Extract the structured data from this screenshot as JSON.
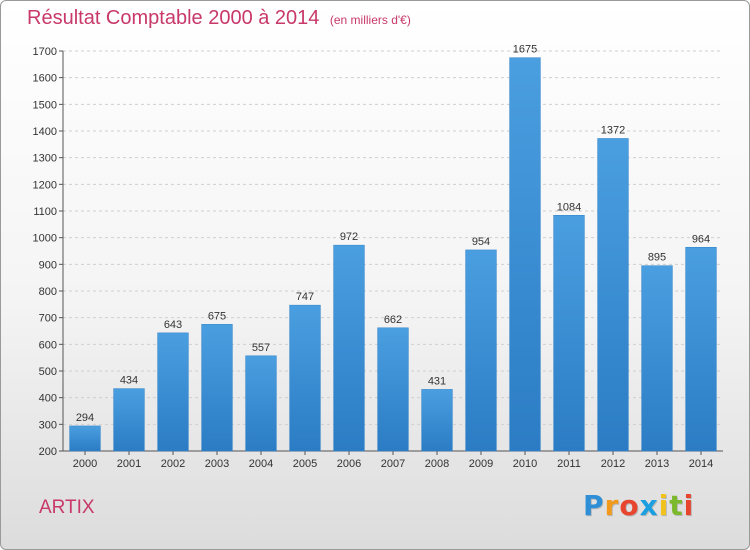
{
  "header": {
    "title": "Résultat Comptable 2000 à 2014",
    "subtitle": "(en milliers d'€)"
  },
  "footer": {
    "location": "ARTIX",
    "brand_letters": [
      "P",
      "r",
      "o",
      "x",
      "i",
      "t",
      "i"
    ],
    "brand_colors": [
      "#2e8fd6",
      "#f29a1c",
      "#e8452f",
      "#1c9fe0",
      "#f2c21c",
      "#7cb92c",
      "#e8452f"
    ]
  },
  "chart_data": {
    "type": "bar",
    "title": "Résultat Comptable 2000 à 2014",
    "subtitle": "(en milliers d'€)",
    "xlabel": "",
    "ylabel": "",
    "categories": [
      "2000",
      "2001",
      "2002",
      "2003",
      "2004",
      "2005",
      "2006",
      "2007",
      "2008",
      "2009",
      "2010",
      "2011",
      "2012",
      "2013",
      "2014"
    ],
    "values": [
      294,
      434,
      643,
      675,
      557,
      747,
      972,
      662,
      431,
      954,
      1675,
      1084,
      1372,
      895,
      964
    ],
    "ylim": [
      200,
      1700
    ],
    "yticks": [
      200,
      300,
      400,
      500,
      600,
      700,
      800,
      900,
      1000,
      1100,
      1200,
      1300,
      1400,
      1500,
      1600,
      1700
    ],
    "grid": true,
    "bar_color": "#4a9fe0",
    "bar_color_dark": "#2b7cc4",
    "legend": "none"
  }
}
